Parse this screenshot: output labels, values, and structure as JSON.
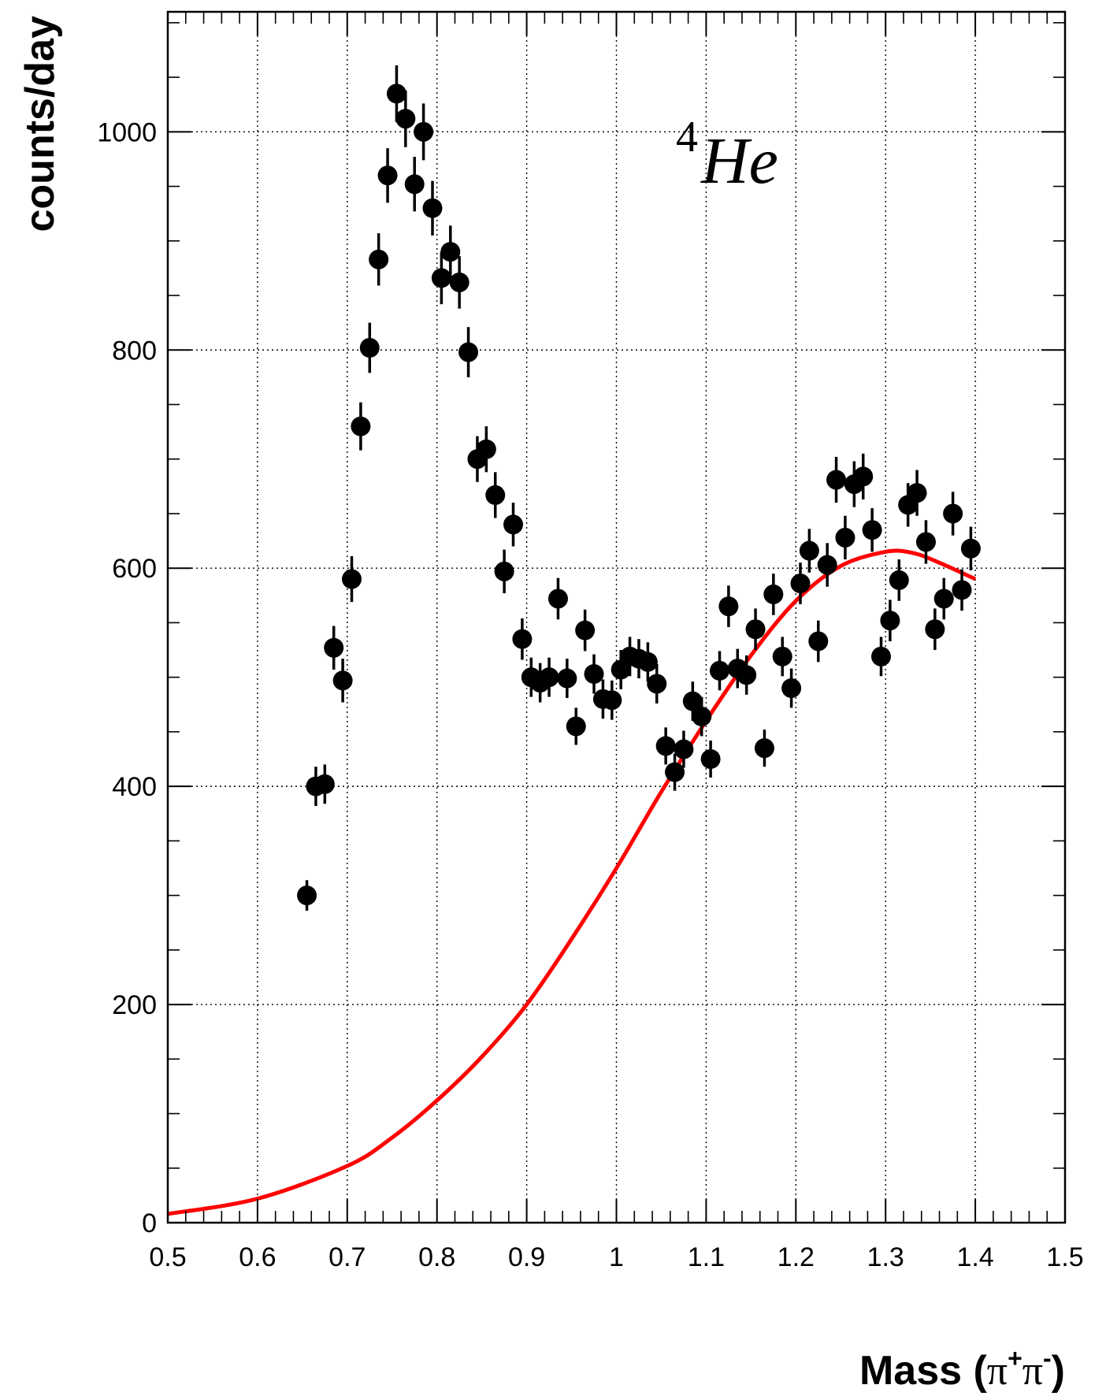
{
  "chart_data": {
    "type": "scatter",
    "title": "",
    "xlabel_main": "Mass (",
    "xlabel_pi1": "π",
    "xlabel_sup1": "+",
    "xlabel_pi2": "π",
    "xlabel_sup2": "-",
    "xlabel_close": ")",
    "ylabel": "counts/day",
    "annotation_sup": "4",
    "annotation_main": "He",
    "xlim": [
      0.5,
      1.5
    ],
    "ylim": [
      0,
      1110
    ],
    "grid": true,
    "x_ticks": [
      "0.5",
      "0.6",
      "0.7",
      "0.8",
      "0.9",
      "1",
      "1.1",
      "1.2",
      "1.3",
      "1.4",
      "1.5"
    ],
    "y_ticks": [
      "0",
      "200",
      "400",
      "600",
      "800",
      "1000"
    ],
    "colors": {
      "points": "#000000",
      "curve": "#ff0000",
      "grid": "#000000"
    },
    "series": [
      {
        "kind": "points_with_errors",
        "x": [
          0.655,
          0.665,
          0.675,
          0.685,
          0.695,
          0.705,
          0.715,
          0.725,
          0.735,
          0.745,
          0.755,
          0.765,
          0.775,
          0.785,
          0.795,
          0.805,
          0.815,
          0.825,
          0.835,
          0.845,
          0.855,
          0.865,
          0.875,
          0.885,
          0.895,
          0.905,
          0.915,
          0.925,
          0.945,
          0.955,
          0.935,
          0.965,
          0.975,
          0.985,
          0.995,
          1.005,
          1.015,
          1.025,
          1.035,
          1.045,
          1.055,
          1.065,
          1.075,
          1.085,
          1.095,
          1.105,
          1.115,
          1.125,
          1.135,
          1.145,
          1.155,
          1.165,
          1.175,
          1.185,
          1.195,
          1.205,
          1.215,
          1.225,
          1.235,
          1.245,
          1.255,
          1.265,
          1.275,
          1.285,
          1.295,
          1.305,
          1.315,
          1.325,
          1.335,
          1.345,
          1.355,
          1.365,
          1.375,
          1.385,
          1.395
        ],
        "y": [
          300,
          400,
          402,
          527,
          497,
          590,
          730,
          802,
          883,
          960,
          1035,
          1012,
          952,
          1000,
          930,
          866,
          890,
          862,
          798,
          700,
          709,
          667,
          597,
          640,
          535,
          500,
          495,
          500,
          499,
          455,
          572,
          543,
          503,
          480,
          479,
          507,
          519,
          517,
          514,
          494,
          437,
          413,
          434,
          478,
          464,
          425,
          506,
          565,
          508,
          502,
          544,
          435,
          576,
          519,
          490,
          586,
          616,
          533,
          603,
          681,
          628,
          677,
          684,
          635,
          519,
          552,
          589,
          658,
          669,
          624,
          544,
          572,
          650,
          580,
          618
        ],
        "yerr": [
          14,
          18,
          18,
          20,
          20,
          21,
          22,
          23,
          24,
          25,
          26,
          26,
          25,
          26,
          25,
          24,
          24,
          24,
          23,
          21,
          21,
          21,
          20,
          20,
          19,
          18,
          18,
          18,
          18,
          17,
          19,
          19,
          18,
          18,
          18,
          18,
          18,
          18,
          18,
          18,
          17,
          17,
          17,
          18,
          18,
          17,
          18,
          19,
          18,
          18,
          19,
          17,
          19,
          18,
          18,
          19,
          20,
          19,
          20,
          21,
          20,
          21,
          21,
          20,
          18,
          19,
          19,
          20,
          21,
          20,
          19,
          19,
          20,
          19,
          20
        ]
      },
      {
        "kind": "fit_curve",
        "x": [
          0.5,
          0.6,
          0.7,
          0.75,
          0.8,
          0.85,
          0.9,
          0.95,
          1.0,
          1.05,
          1.1,
          1.15,
          1.2,
          1.25,
          1.3,
          1.33,
          1.36,
          1.4
        ],
        "y": [
          8,
          22,
          52,
          78,
          112,
          152,
          200,
          260,
          325,
          395,
          460,
          520,
          570,
          602,
          615,
          614,
          605,
          590
        ]
      }
    ]
  }
}
